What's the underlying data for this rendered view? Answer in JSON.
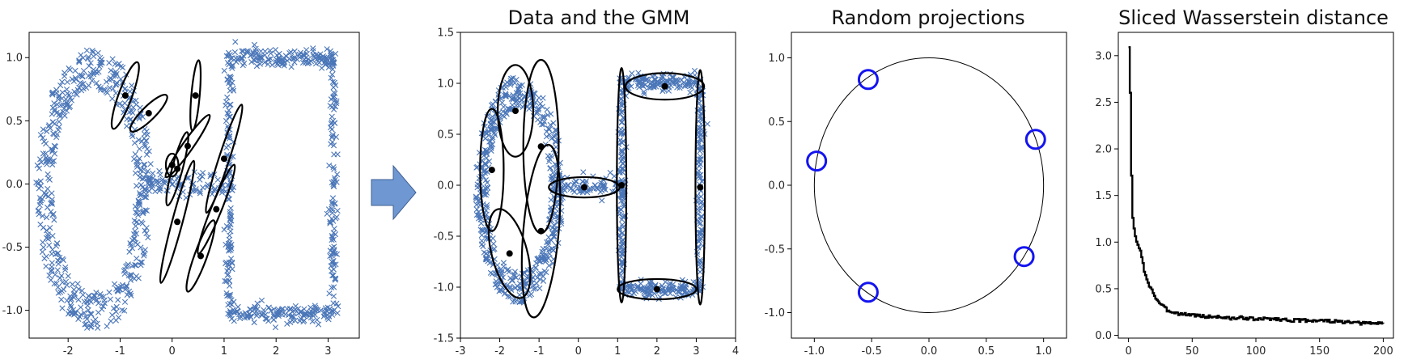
{
  "colors": {
    "points": "#4a76b8",
    "ellipse": "#000000",
    "center": "#000000",
    "projection": "#1414f0",
    "arrow": "#6f98d2",
    "arrow_edge": "#3f5f93"
  },
  "arrow_icon": "right-arrow-icon",
  "chart_data": [
    {
      "type": "scatter",
      "title": "",
      "xlim": [
        -2.75,
        3.6
      ],
      "ylim": [
        -1.22,
        1.2
      ],
      "xticks": [
        "-2",
        "-1",
        "0",
        "1",
        "2",
        "3"
      ],
      "yticks": [
        "-1.0",
        "-0.5",
        "0.0",
        "0.5",
        "1.0"
      ],
      "series": [
        {
          "marker": "x",
          "shape": "ring plus rectangle",
          "ring_center": [
            -1.5,
            -0.05
          ],
          "ring_radii": [
            0.95,
            1.0
          ],
          "rect_x": [
            1.1,
            3.1
          ],
          "rect_y": [
            -1.05,
            1.05
          ]
        }
      ],
      "gmm_components": [
        {
          "center": [
            -0.9,
            0.7
          ]
        },
        {
          "center": [
            -0.45,
            0.56
          ]
        },
        {
          "center": [
            0.45,
            0.7
          ]
        },
        {
          "center": [
            0.3,
            0.3
          ]
        },
        {
          "center": [
            0.0,
            0.15
          ]
        },
        {
          "center": [
            0.1,
            0.12
          ]
        },
        {
          "center": [
            1.0,
            0.2
          ]
        },
        {
          "center": [
            0.1,
            -0.3
          ]
        },
        {
          "center": [
            0.85,
            -0.2
          ]
        },
        {
          "center": [
            0.55,
            -0.57
          ]
        }
      ]
    },
    {
      "type": "scatter",
      "title": "Data and the GMM",
      "xlim": [
        -3,
        4
      ],
      "ylim": [
        -1.5,
        1.5
      ],
      "xticks": [
        "-3",
        "-2",
        "-1",
        "0",
        "1",
        "2",
        "3",
        "4"
      ],
      "yticks": [
        "-1.5",
        "-1.0",
        "-0.5",
        "0.0",
        "0.5",
        "1.0",
        "1.5"
      ],
      "gmm_components": [
        {
          "center": [
            -1.6,
            0.73
          ]
        },
        {
          "center": [
            -0.95,
            0.38
          ]
        },
        {
          "center": [
            -2.2,
            0.15
          ]
        },
        {
          "center": [
            -0.95,
            -0.45
          ]
        },
        {
          "center": [
            -1.75,
            -0.67
          ]
        },
        {
          "center": [
            0.15,
            -0.02
          ]
        },
        {
          "center": [
            1.1,
            0.0
          ]
        },
        {
          "center": [
            2.2,
            0.97
          ]
        },
        {
          "center": [
            2.0,
            -1.02
          ]
        },
        {
          "center": [
            3.1,
            -0.02
          ]
        }
      ]
    },
    {
      "type": "scatter",
      "title": "Random projections",
      "xlim": [
        -1.2,
        1.2
      ],
      "ylim": [
        -1.2,
        1.2
      ],
      "xticks": [
        "-1.0",
        "-0.5",
        "0.0",
        "0.5",
        "1.0"
      ],
      "yticks": [
        "-1.0",
        "-0.5",
        "0.0",
        "0.5",
        "1.0"
      ],
      "unit_circle": true,
      "points": [
        {
          "x": -0.53,
          "y": 0.83
        },
        {
          "x": 0.93,
          "y": 0.36
        },
        {
          "x": -0.98,
          "y": 0.19
        },
        {
          "x": 0.83,
          "y": -0.56
        },
        {
          "x": -0.53,
          "y": -0.84
        }
      ]
    },
    {
      "type": "line",
      "title": "Sliced Wasserstein distance",
      "xlim": [
        -8,
        208
      ],
      "ylim": [
        -0.03,
        3.25
      ],
      "xticks": [
        "0",
        "50",
        "100",
        "150",
        "200"
      ],
      "yticks": [
        "0.0",
        "0.5",
        "1.0",
        "1.5",
        "2.0",
        "2.5",
        "3.0"
      ],
      "series": [
        {
          "x": [
            0,
            1,
            2,
            3,
            4,
            5,
            6,
            8,
            10,
            12,
            15,
            18,
            20,
            25,
            30,
            35,
            40,
            50,
            60,
            70,
            80,
            90,
            100,
            110,
            120,
            130,
            140,
            150,
            160,
            170,
            180,
            190,
            200
          ],
          "y": [
            3.1,
            2.6,
            1.7,
            1.25,
            1.15,
            1.05,
            1.0,
            0.95,
            0.85,
            0.68,
            0.55,
            0.5,
            0.42,
            0.33,
            0.27,
            0.25,
            0.23,
            0.22,
            0.2,
            0.2,
            0.18,
            0.19,
            0.17,
            0.18,
            0.17,
            0.16,
            0.16,
            0.16,
            0.15,
            0.14,
            0.13,
            0.13,
            0.13
          ]
        }
      ]
    }
  ]
}
